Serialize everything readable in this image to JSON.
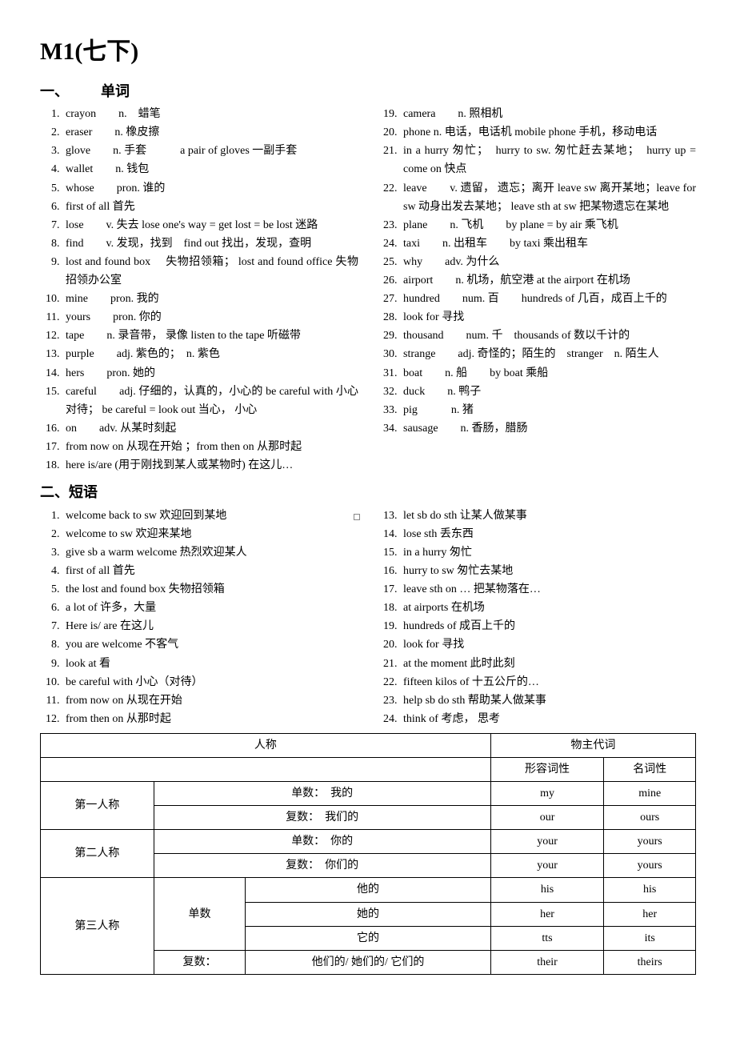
{
  "title": "M1(七下)",
  "sections": {
    "s1": {
      "label_prefix": "一、",
      "label_text": "单词"
    },
    "s2": {
      "label_prefix": "二、",
      "label_text": "短语"
    }
  },
  "words_left": [
    "crayon　　n.　蜡笔",
    "eraser　　n.  橡皮擦",
    "glove　　n.  手套　　　a pair of gloves  一副手套",
    "wallet　　n.  钱包",
    "whose　　pron.  谁的",
    "first of all  首先",
    "lose　　v.  失去  lose one's way = get lost = be lost  迷路",
    "find　　v.  发现，找到　find out  找出，发现，查明",
    "lost and found box　 失物招领箱； lost and found office 失物招领办公室",
    "mine　　pron.  我的",
    "yours　　pron.  你的",
    "tape　　n.  录音带， 录像  listen to the tape  听磁带",
    "purple　　adj.  紫色的；　n.  紫色",
    "hers　　pron.  她的",
    "careful　　adj.  仔细的，认真的，小心的  be careful with 小心对待；  be careful = look out  当心， 小心",
    "on　　adv.  从某时刻起",
    "from now on  从现在开始  ；from then on  从那时起",
    "here is/are (用于刚找到某人或某物时)  在这儿…"
  ],
  "words_right_start": 19,
  "words_right": [
    "camera　　n.  照相机",
    "phone n.  电话，电话机  mobile phone  手机，移动电话",
    "in a hurry  匆忙；　hurry to sw.  匆忙赶去某地；　hurry up = come on  快点",
    "leave　　v.  遗留， 遗忘；离开  leave sw  离开某地；leave for sw  动身出发去某地； leave sth at sw  把某物遗忘在某地",
    "plane　　n.  飞机　　by plane = by air  乘飞机",
    "taxi　　n.  出租车　　by taxi  乘出租车",
    "why　　adv.  为什么",
    "airport　　n.  机场，航空港  at the airport  在机场",
    "hundred　　num.  百　　hundreds of  几百，成百上千的",
    "look for  寻找",
    "thousand　　num.  千　thousands of  数以千计的",
    "strange　　adj.  奇怪的；陌生的　stranger　n.  陌生人",
    "boat　　n.  船　　by boat  乘船",
    "duck　　n.  鸭子",
    "pig　　　n.  猪",
    "sausage　　n.  香肠，腊肠"
  ],
  "phrases_left": [
    "welcome back to sw  欢迎回到某地",
    "welcome to sw  欢迎来某地",
    "give sb a warm welcome  热烈欢迎某人",
    "first of all  首先",
    "the lost and found box  失物招领箱",
    "a lot of  许多，大量",
    "Here is/ are 在这儿",
    "you are welcome  不客气",
    "look at  看",
    "be careful with  小心（对待）",
    "from now on  从现在开始",
    "from then on  从那时起"
  ],
  "phrases_right_start": 13,
  "phrases_right": [
    "let sb do sth  让某人做某事",
    "lose sth  丢东西",
    "in a hurry  匆忙",
    "hurry to sw  匆忙去某地",
    "leave sth on …  把某物落在…",
    "at airports  在机场",
    "hundreds of  成百上千的",
    "look for  寻找",
    "at the moment  此时此刻",
    "fifteen kilos of  十五公斤的…",
    "help sb do sth  帮助某人做某事",
    "think of  考虑， 思考"
  ],
  "table": {
    "header_person": "人称",
    "header_poss": "物主代词",
    "header_adj": "形容词性",
    "header_noun": "名词性",
    "rows": [
      {
        "person": "第一人称",
        "number": "",
        "label": "单数：　我的",
        "adj": "my",
        "noun": "mine"
      },
      {
        "person": "",
        "number": "",
        "label": "复数：　我们的",
        "adj": "our",
        "noun": "ours"
      },
      {
        "person": "第二人称",
        "number": "",
        "label": "单数：　你的",
        "adj": "your",
        "noun": "yours"
      },
      {
        "person": "",
        "number": "",
        "label": "复数：　你们的",
        "adj": "your",
        "noun": "yours"
      },
      {
        "person": "第三人称",
        "number": "单数",
        "label": "他的",
        "adj": "his",
        "noun": "his"
      },
      {
        "person": "",
        "number": "",
        "label": "她的",
        "adj": "her",
        "noun": "her"
      },
      {
        "person": "",
        "number": "",
        "label": "它的",
        "adj": "tts",
        "noun": "its"
      },
      {
        "person": "",
        "number": "复数：",
        "label": "他们的/ 她们的/ 它们的",
        "adj": "their",
        "noun": "theirs"
      }
    ]
  }
}
